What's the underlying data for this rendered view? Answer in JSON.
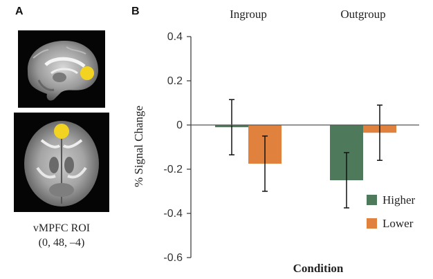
{
  "panel_a": {
    "letter": "A",
    "roi_title": "vMPFC ROI",
    "roi_coords": "(0, 48, –4)",
    "roi_color": "#f2d321"
  },
  "panel_b": {
    "letter": "B"
  },
  "chart_data": {
    "type": "bar",
    "categories": [
      "Ingroup",
      "Outgroup"
    ],
    "series": [
      {
        "name": "Higher",
        "color": "#4e7a5b",
        "values": [
          -0.01,
          -0.25
        ],
        "error": [
          0.125,
          0.125
        ]
      },
      {
        "name": "Lower",
        "color": "#e0823e",
        "values": [
          -0.175,
          -0.035
        ],
        "error": [
          0.125,
          0.125
        ]
      }
    ],
    "xlabel": "Condition",
    "ylabel": "% Signal Change",
    "ylim": [
      -0.6,
      0.4
    ],
    "yticks": [
      0.4,
      0.2,
      0,
      -0.2,
      -0.4,
      -0.6
    ],
    "ytick_labels": [
      "0.4",
      "0.2",
      "0",
      "-0.2",
      "-0.4",
      "-0.6"
    ],
    "category_position": "top",
    "legend_position": "bottom-right",
    "grid": false
  }
}
